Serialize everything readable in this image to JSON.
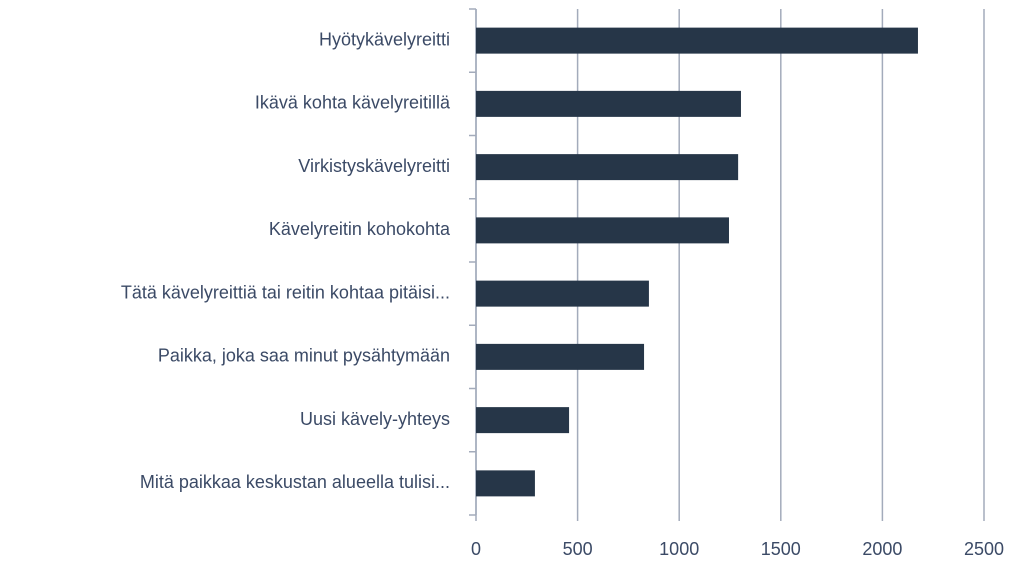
{
  "chart_data": {
    "type": "barh",
    "categories": [
      "Hyötykävelyreitti",
      "Ikävä kohta kävelyreitillä",
      "Virkistyskävelyreitti",
      "Kävelyreitin kohokohta",
      "Tätä kävelyreittiä tai reitin kohtaa pitäisi...",
      "Paikka, joka saa minut pysähtymään",
      "Uusi kävely-yhteys",
      "Mitä paikkaa keskustan alueella tulisi..."
    ],
    "values": [
      2175,
      1304,
      1290,
      1245,
      851,
      827,
      458,
      290
    ],
    "color": "#263648",
    "xlim": [
      0,
      2500
    ],
    "xticks": [
      0,
      500,
      1000,
      1500,
      2000,
      2500
    ],
    "grid": true
  }
}
